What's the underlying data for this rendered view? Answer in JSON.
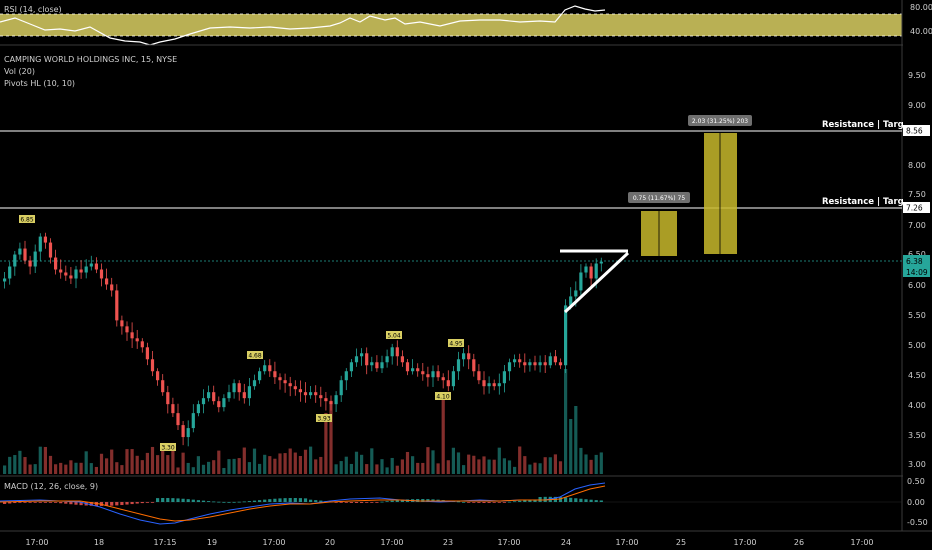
{
  "indicators": {
    "rsi_label": "RSI (14, close)",
    "title": "CAMPING WORLD HOLDINGS INC, 15, NYSE",
    "vol_label": "Vol (20)",
    "pivots_label": "Pivots HL (10, 10)",
    "macd_label": "MACD (12, 26, close, 9)"
  },
  "rsi_axis": [
    "80.00",
    "40.00"
  ],
  "macd_axis": [
    "0.50",
    "0.00",
    "-0.50"
  ],
  "price_axis": [
    "9.50",
    "9.00",
    "8.50",
    "8.00",
    "7.50",
    "7.00",
    "6.50",
    "6.00",
    "5.50",
    "5.00",
    "4.50",
    "4.00",
    "3.50",
    "3.00"
  ],
  "price_tags": {
    "resistance_high": "8.56",
    "resistance_low": "7.26",
    "last_price": "6.38",
    "countdown": "14:09"
  },
  "resistance": {
    "label_high": "Resistance | Target",
    "label_low": "Resistance | Target"
  },
  "measure": {
    "first": "0.75 (11.67%) 75",
    "second": "2.03 (31.25%) 203"
  },
  "pivots": {
    "h1": "6.85",
    "h2": "4.68",
    "h3": "5.04",
    "h4": "4.95",
    "l1": "3.30",
    "l2": "3.93",
    "l3": "4.10"
  },
  "time_axis": [
    "17:00",
    "18",
    "17:15",
    "19",
    "17:00",
    "20",
    "17:00",
    "23",
    "17:00",
    "24",
    "17:00",
    "25",
    "17:00",
    "26",
    "17:00"
  ],
  "colors": {
    "up": "#26a69a",
    "down": "#ef5350",
    "box": "#c8b92c",
    "rsi_band": "#d9cf63",
    "macd_line": "#2962ff",
    "signal_line": "#ff6d00"
  },
  "chart_data": {
    "type": "candlestick",
    "title": "CAMPING WORLD HOLDINGS INC, 15, NYSE",
    "ylim": [
      2.8,
      9.9
    ],
    "close": [
      6.1,
      6.3,
      6.5,
      6.6,
      6.4,
      6.3,
      6.55,
      6.8,
      6.7,
      6.45,
      6.25,
      6.2,
      6.15,
      6.1,
      6.25,
      6.2,
      6.3,
      6.35,
      6.25,
      6.1,
      6.0,
      5.9,
      5.4,
      5.3,
      5.2,
      5.1,
      5.05,
      4.95,
      4.75,
      4.55,
      4.4,
      4.2,
      4.0,
      3.85,
      3.65,
      3.45,
      3.6,
      3.85,
      4.0,
      4.1,
      4.2,
      4.05,
      3.95,
      4.1,
      4.2,
      4.35,
      4.2,
      4.1,
      4.3,
      4.4,
      4.55,
      4.65,
      4.55,
      4.45,
      4.4,
      4.35,
      4.3,
      4.25,
      4.2,
      4.15,
      4.2,
      4.15,
      4.1,
      4.05,
      4.0,
      4.15,
      4.4,
      4.55,
      4.7,
      4.8,
      4.85,
      4.65,
      4.7,
      4.6,
      4.7,
      4.8,
      4.95,
      4.8,
      4.7,
      4.55,
      4.6,
      4.55,
      4.5,
      4.45,
      4.55,
      4.45,
      4.4,
      4.3,
      4.55,
      4.75,
      4.85,
      4.75,
      4.55,
      4.4,
      4.3,
      4.35,
      4.3,
      4.35,
      4.55,
      4.7,
      4.75,
      4.7,
      4.65,
      4.7,
      4.65,
      4.7,
      4.65,
      4.8,
      4.7,
      4.65,
      5.65,
      5.8,
      5.9,
      6.2,
      6.3,
      6.1,
      6.35,
      6.38
    ],
    "volume_scale_note": "",
    "resistance_levels": [
      8.56,
      7.26
    ],
    "last_price": 6.38
  }
}
